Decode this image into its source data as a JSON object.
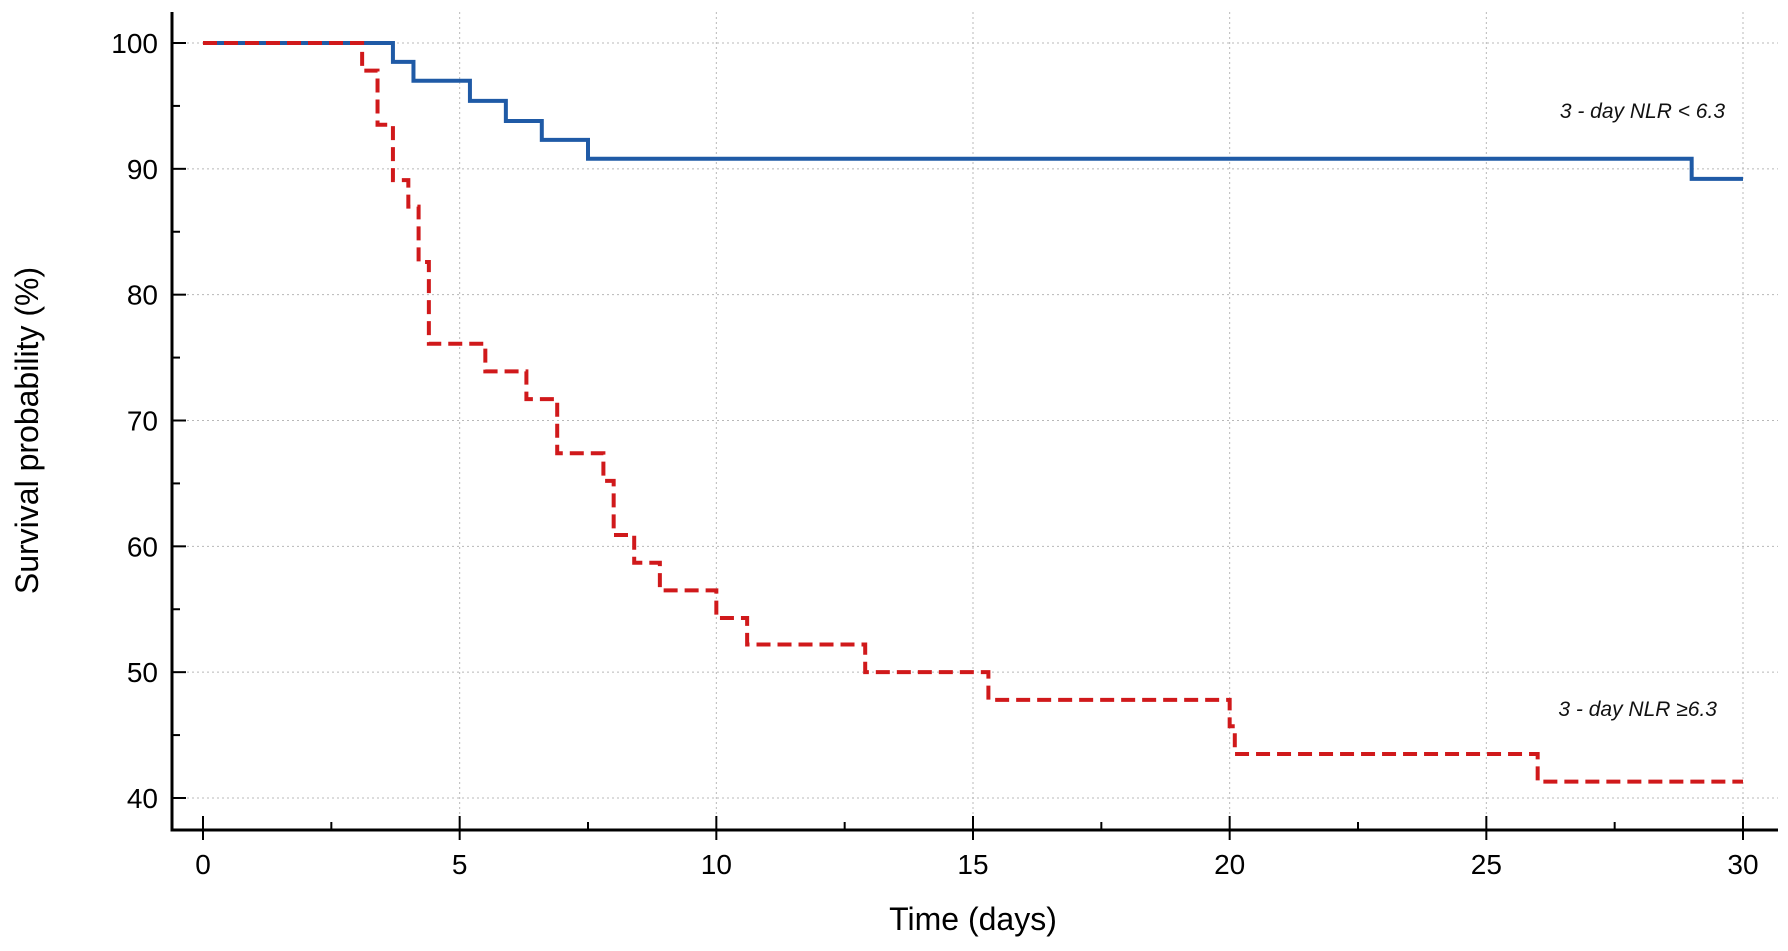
{
  "chart_data": {
    "type": "line",
    "xlabel": "Time (days)",
    "ylabel": "Survival probability (%)",
    "xlim": [
      0,
      30
    ],
    "ylim": [
      40,
      100
    ],
    "x_ticks": [
      "0",
      "5",
      "10",
      "15",
      "20",
      "25",
      "30"
    ],
    "y_ticks": [
      "40",
      "50",
      "60",
      "70",
      "80",
      "90",
      "100"
    ],
    "grid": true,
    "step": true,
    "series": [
      {
        "name": "3 - day NLR < 6.3",
        "color": "#1f5aa6",
        "dash": "solid",
        "x": [
          0,
          3.7,
          4.1,
          5.2,
          5.9,
          6.6,
          7.5,
          29.0,
          30.0
        ],
        "y": [
          100,
          98.5,
          97.0,
          95.4,
          93.8,
          92.3,
          90.8,
          89.2,
          89.2
        ]
      },
      {
        "name": "3 - day NLR ≥6.3",
        "color": "#d0191b",
        "dash": "dashed",
        "x": [
          0,
          3.1,
          3.4,
          3.7,
          4.0,
          4.2,
          4.4,
          5.5,
          6.3,
          6.9,
          7.8,
          8.0,
          8.4,
          8.9,
          10.0,
          10.6,
          12.9,
          15.3,
          20.0,
          20.1,
          26.0,
          30.0
        ],
        "y": [
          100,
          97.8,
          93.5,
          89.1,
          87.0,
          82.6,
          76.1,
          73.9,
          71.7,
          67.4,
          65.2,
          60.9,
          58.7,
          56.5,
          54.3,
          52.2,
          50.0,
          47.8,
          45.7,
          43.5,
          41.3,
          41.3
        ]
      }
    ],
    "annotations": [
      {
        "text": "3 - day NLR < 6.3",
        "series": 0
      },
      {
        "text": "3 - day NLR ≥6.3",
        "series": 1
      }
    ]
  }
}
